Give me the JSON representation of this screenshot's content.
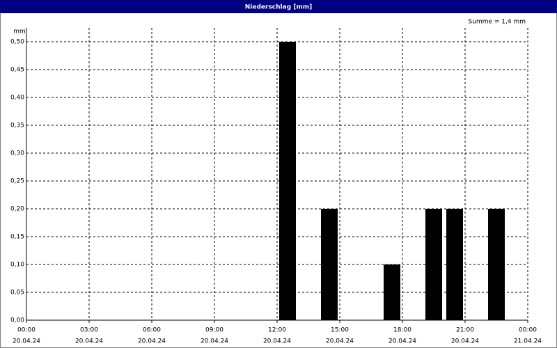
{
  "chart_data": {
    "type": "bar",
    "title": "Niederschlag [mm]",
    "y_label": "mm",
    "annotation": "Summe = 1,4 mm",
    "x": [
      12,
      14,
      17,
      19,
      20,
      22
    ],
    "values": [
      0.5,
      0.2,
      0.1,
      0.2,
      0.2,
      0.2
    ],
    "color": "#000000",
    "xlim": [
      0,
      24
    ],
    "ylim": [
      0,
      0.525
    ],
    "xticks": [
      {
        "value": 0,
        "label": "00:00",
        "sublabel": "20.04.24"
      },
      {
        "value": 3,
        "label": "03:00",
        "sublabel": "20.04.24"
      },
      {
        "value": 6,
        "label": "06:00",
        "sublabel": "20.04.24"
      },
      {
        "value": 9,
        "label": "09:00",
        "sublabel": "20.04.24"
      },
      {
        "value": 12,
        "label": "12:00",
        "sublabel": "20.04.24"
      },
      {
        "value": 15,
        "label": "15:00",
        "sublabel": "20.04.24"
      },
      {
        "value": 18,
        "label": "18:00",
        "sublabel": "20.04.24"
      },
      {
        "value": 21,
        "label": "21:00",
        "sublabel": "20.04.24"
      },
      {
        "value": 24,
        "label": "00:00",
        "sublabel": "21.04.24"
      }
    ],
    "yticks": [
      {
        "value": 0,
        "label": "0,00"
      },
      {
        "value": 0.05,
        "label": "0,05"
      },
      {
        "value": 0.1,
        "label": "0,10"
      },
      {
        "value": 0.15,
        "label": "0,15"
      },
      {
        "value": 0.2,
        "label": "0,20"
      },
      {
        "value": 0.25,
        "label": "0,25"
      },
      {
        "value": 0.3,
        "label": "0,30"
      },
      {
        "value": 0.35,
        "label": "0,35"
      },
      {
        "value": 0.4,
        "label": "0,40"
      },
      {
        "value": 0.45,
        "label": "0,45"
      },
      {
        "value": 0.5,
        "label": "0,50"
      }
    ],
    "grid": true
  }
}
